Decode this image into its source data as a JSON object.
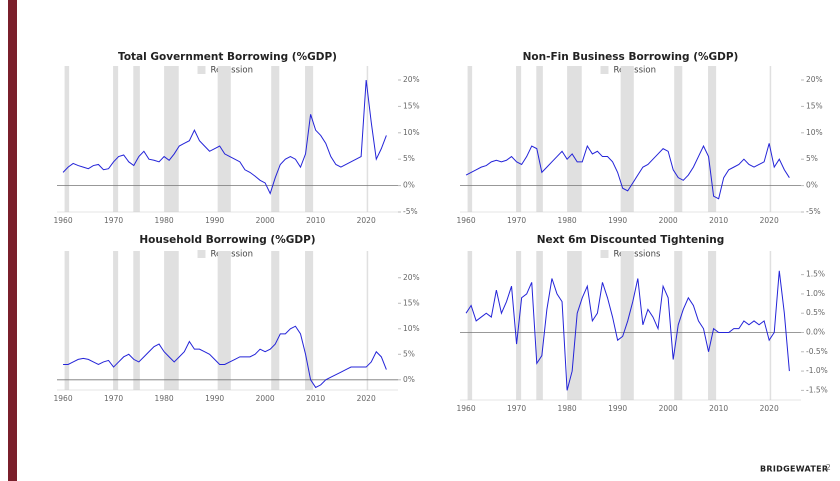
{
  "chart_data": [
    {
      "type": "line",
      "title": "Total Government Borrowing (%GDP)",
      "legend_label": "Recession",
      "recession_color": "#e0e0e0",
      "recessions": [
        [
          1960.3,
          1961.2
        ],
        [
          1969.9,
          1970.9
        ],
        [
          1973.9,
          1975.2
        ],
        [
          1980.0,
          1982.9
        ],
        [
          1990.6,
          1993.2
        ],
        [
          2001.2,
          2002.8
        ],
        [
          2007.9,
          2009.5
        ],
        [
          2020.1,
          2020.4
        ]
      ],
      "xlim": [
        1958.8,
        2026.3
      ],
      "xticks": [
        1960,
        1970,
        1980,
        1990,
        2000,
        2010,
        2020
      ],
      "ylim": [
        -5,
        20
      ],
      "yticks": [
        {
          "value": -5,
          "label": "-5%"
        },
        {
          "value": 0,
          "label": "0%"
        },
        {
          "value": 5,
          "label": "5%"
        },
        {
          "value": 10,
          "label": "10%"
        },
        {
          "value": 15,
          "label": "15%"
        },
        {
          "value": 20,
          "label": "20%"
        }
      ],
      "x": [
        1960,
        1961,
        1962,
        1963,
        1964,
        1965,
        1966,
        1967,
        1968,
        1969,
        1970,
        1971,
        1972,
        1973,
        1974,
        1975,
        1976,
        1977,
        1978,
        1979,
        1980,
        1981,
        1982,
        1983,
        1984,
        1985,
        1986,
        1987,
        1988,
        1989,
        1990,
        1991,
        1992,
        1993,
        1994,
        1995,
        1996,
        1997,
        1998,
        1999,
        2000,
        2001,
        2002,
        2003,
        2004,
        2005,
        2006,
        2007,
        2008,
        2009,
        2010,
        2011,
        2012,
        2013,
        2014,
        2015,
        2016,
        2017,
        2018,
        2019,
        2020,
        2021,
        2022,
        2023,
        2024
      ],
      "series": [
        {
          "color": "#2424d8",
          "values": [
            2.5,
            3.5,
            4.2,
            3.8,
            3.5,
            3.2,
            3.8,
            4.0,
            3.0,
            3.2,
            4.5,
            5.5,
            5.8,
            4.5,
            3.8,
            5.5,
            6.5,
            5.0,
            4.8,
            4.5,
            5.5,
            4.8,
            6.0,
            7.5,
            8.0,
            8.5,
            10.5,
            8.5,
            7.5,
            6.5,
            7.0,
            7.5,
            6.0,
            5.5,
            5.0,
            4.5,
            3.0,
            2.5,
            1.8,
            1.0,
            0.5,
            -1.5,
            1.5,
            4.0,
            5.0,
            5.5,
            5.0,
            3.5,
            6.0,
            13.5,
            10.5,
            9.5,
            8.0,
            5.5,
            4.0,
            3.5,
            4.0,
            4.5,
            5.0,
            5.5,
            20,
            12,
            5.0,
            7.0,
            9.5
          ]
        }
      ]
    },
    {
      "type": "line",
      "title": "Non-Fin Business Borrowing (%GDP)",
      "legend_label": "Recession",
      "recession_color": "#e0e0e0",
      "recessions": [
        [
          1960.3,
          1961.2
        ],
        [
          1969.9,
          1970.9
        ],
        [
          1973.9,
          1975.2
        ],
        [
          1980.0,
          1982.9
        ],
        [
          1990.6,
          1993.2
        ],
        [
          2001.2,
          2002.8
        ],
        [
          2007.9,
          2009.5
        ],
        [
          2020.1,
          2020.4
        ]
      ],
      "xlim": [
        1958.8,
        2026.3
      ],
      "xticks": [
        1960,
        1970,
        1980,
        1990,
        2000,
        2010,
        2020
      ],
      "ylim": [
        -5,
        20
      ],
      "yticks": [
        {
          "value": -5,
          "label": "-5%"
        },
        {
          "value": 0,
          "label": "0%"
        },
        {
          "value": 5,
          "label": "5%"
        },
        {
          "value": 10,
          "label": "10%"
        },
        {
          "value": 15,
          "label": "15%"
        },
        {
          "value": 20,
          "label": "20%"
        }
      ],
      "x": [
        1960,
        1961,
        1962,
        1963,
        1964,
        1965,
        1966,
        1967,
        1968,
        1969,
        1970,
        1971,
        1972,
        1973,
        1974,
        1975,
        1976,
        1977,
        1978,
        1979,
        1980,
        1981,
        1982,
        1983,
        1984,
        1985,
        1986,
        1987,
        1988,
        1989,
        1990,
        1991,
        1992,
        1993,
        1994,
        1995,
        1996,
        1997,
        1998,
        1999,
        2000,
        2001,
        2002,
        2003,
        2004,
        2005,
        2006,
        2007,
        2008,
        2009,
        2010,
        2011,
        2012,
        2013,
        2014,
        2015,
        2016,
        2017,
        2018,
        2019,
        2020,
        2021,
        2022,
        2023,
        2024
      ],
      "series": [
        {
          "color": "#2424d8",
          "values": [
            2.0,
            2.5,
            3.0,
            3.5,
            3.8,
            4.5,
            4.8,
            4.5,
            4.8,
            5.5,
            4.5,
            4.0,
            5.5,
            7.5,
            7.0,
            2.5,
            3.5,
            4.5,
            5.5,
            6.5,
            5.0,
            6.0,
            4.5,
            4.5,
            7.5,
            6.0,
            6.5,
            5.5,
            5.5,
            4.5,
            2.5,
            -0.5,
            -1.0,
            0.5,
            2.0,
            3.5,
            4.0,
            5.0,
            6.0,
            7.0,
            6.5,
            3.0,
            1.5,
            1.0,
            2.0,
            3.5,
            5.5,
            7.5,
            5.5,
            -2.0,
            -2.5,
            1.5,
            3.0,
            3.5,
            4.0,
            5.0,
            4.0,
            3.5,
            4.0,
            4.5,
            8.0,
            3.5,
            5.0,
            3.0,
            1.5
          ]
        }
      ]
    },
    {
      "type": "line",
      "title": "Household Borrowing (%GDP)",
      "legend_label": "Recession",
      "recession_color": "#e0e0e0",
      "recessions": [
        [
          1960.3,
          1961.2
        ],
        [
          1969.9,
          1970.9
        ],
        [
          1973.9,
          1975.2
        ],
        [
          1980.0,
          1982.9
        ],
        [
          1990.6,
          1993.2
        ],
        [
          2001.2,
          2002.8
        ],
        [
          2007.9,
          2009.5
        ],
        [
          2020.1,
          2020.4
        ]
      ],
      "xlim": [
        1958.8,
        2026.3
      ],
      "xticks": [
        1960,
        1970,
        1980,
        1990,
        2000,
        2010,
        2020
      ],
      "ylim": [
        -2,
        22.5
      ],
      "yticks": [
        {
          "value": 0,
          "label": "0%"
        },
        {
          "value": 5,
          "label": "5%"
        },
        {
          "value": 10,
          "label": "10%"
        },
        {
          "value": 15,
          "label": "15%"
        },
        {
          "value": 20,
          "label": "20%"
        }
      ],
      "x": [
        1960,
        1961,
        1962,
        1963,
        1964,
        1965,
        1966,
        1967,
        1968,
        1969,
        1970,
        1971,
        1972,
        1973,
        1974,
        1975,
        1976,
        1977,
        1978,
        1979,
        1980,
        1981,
        1982,
        1983,
        1984,
        1985,
        1986,
        1987,
        1988,
        1989,
        1990,
        1991,
        1992,
        1993,
        1994,
        1995,
        1996,
        1997,
        1998,
        1999,
        2000,
        2001,
        2002,
        2003,
        2004,
        2005,
        2006,
        2007,
        2008,
        2009,
        2010,
        2011,
        2012,
        2013,
        2014,
        2015,
        2016,
        2017,
        2018,
        2019,
        2020,
        2021,
        2022,
        2023,
        2024
      ],
      "series": [
        {
          "color": "#2424d8",
          "values": [
            3.0,
            3.0,
            3.5,
            4.0,
            4.2,
            4.0,
            3.5,
            3.0,
            3.5,
            3.8,
            2.5,
            3.5,
            4.5,
            5.0,
            4.0,
            3.5,
            4.5,
            5.5,
            6.5,
            7.0,
            5.5,
            4.5,
            3.5,
            4.5,
            5.5,
            7.5,
            6.0,
            6.0,
            5.5,
            5.0,
            4.0,
            3.0,
            3.0,
            3.5,
            4.0,
            4.5,
            4.5,
            4.5,
            5.0,
            6.0,
            5.5,
            6.0,
            7.0,
            9.0,
            9.0,
            10.0,
            10.5,
            9.0,
            5.0,
            0.0,
            -1.5,
            -1.0,
            0.0,
            0.5,
            1.0,
            1.5,
            2.0,
            2.5,
            2.5,
            2.5,
            2.5,
            3.5,
            5.5,
            4.5,
            2.0
          ]
        }
      ]
    },
    {
      "type": "line",
      "title": "Next 6m Discounted Tightening",
      "legend_label": "Recessions",
      "recession_color": "#e0e0e0",
      "recessions": [
        [
          1960.3,
          1961.2
        ],
        [
          1969.9,
          1970.9
        ],
        [
          1973.9,
          1975.2
        ],
        [
          1980.0,
          1982.9
        ],
        [
          1990.6,
          1993.2
        ],
        [
          2001.2,
          2002.8
        ],
        [
          2007.9,
          2009.5
        ],
        [
          2020.1,
          2020.4
        ]
      ],
      "xlim": [
        1958.8,
        2026.3
      ],
      "xticks": [
        1960,
        1970,
        1980,
        1990,
        2000,
        2010,
        2020
      ],
      "ylim": [
        -1.75,
        1.75
      ],
      "yticks": [
        {
          "value": -1.5,
          "label": "-1.5%"
        },
        {
          "value": -1.0,
          "label": "-1.0%"
        },
        {
          "value": -0.5,
          "label": "-0.5%"
        },
        {
          "value": 0,
          "label": "0.0%"
        },
        {
          "value": 0.5,
          "label": "0.5%"
        },
        {
          "value": 1.0,
          "label": "1.0%"
        },
        {
          "value": 1.5,
          "label": "1.5%"
        }
      ],
      "x": [
        1960,
        1961,
        1962,
        1963,
        1964,
        1965,
        1966,
        1967,
        1968,
        1969,
        1970,
        1971,
        1972,
        1973,
        1974,
        1975,
        1976,
        1977,
        1978,
        1979,
        1980,
        1981,
        1982,
        1983,
        1984,
        1985,
        1986,
        1987,
        1988,
        1989,
        1990,
        1991,
        1992,
        1993,
        1994,
        1995,
        1996,
        1997,
        1998,
        1999,
        2000,
        2001,
        2002,
        2003,
        2004,
        2005,
        2006,
        2007,
        2008,
        2009,
        2010,
        2011,
        2012,
        2013,
        2014,
        2015,
        2016,
        2017,
        2018,
        2019,
        2020,
        2021,
        2022,
        2023,
        2024
      ],
      "series": [
        {
          "color": "#2424d8",
          "values": [
            0.5,
            0.7,
            0.3,
            0.4,
            0.5,
            0.4,
            1.1,
            0.5,
            0.8,
            1.2,
            -0.3,
            0.9,
            1.0,
            1.3,
            -0.8,
            -0.6,
            0.6,
            1.4,
            1.0,
            0.8,
            -1.5,
            -1.0,
            0.5,
            0.9,
            1.2,
            0.3,
            0.5,
            1.3,
            0.9,
            0.4,
            -0.2,
            -0.1,
            0.3,
            0.8,
            1.4,
            0.2,
            0.6,
            0.4,
            0.1,
            1.2,
            0.9,
            -0.7,
            0.2,
            0.6,
            0.9,
            0.7,
            0.3,
            0.1,
            -0.5,
            0.1,
            0.0,
            0.0,
            0.0,
            0.1,
            0.1,
            0.3,
            0.2,
            0.3,
            0.2,
            0.3,
            -0.2,
            0.0,
            1.6,
            0.5,
            -1.0
          ]
        }
      ]
    }
  ],
  "footer": {
    "brand": "BRIDGEWATER",
    "page": 2
  }
}
